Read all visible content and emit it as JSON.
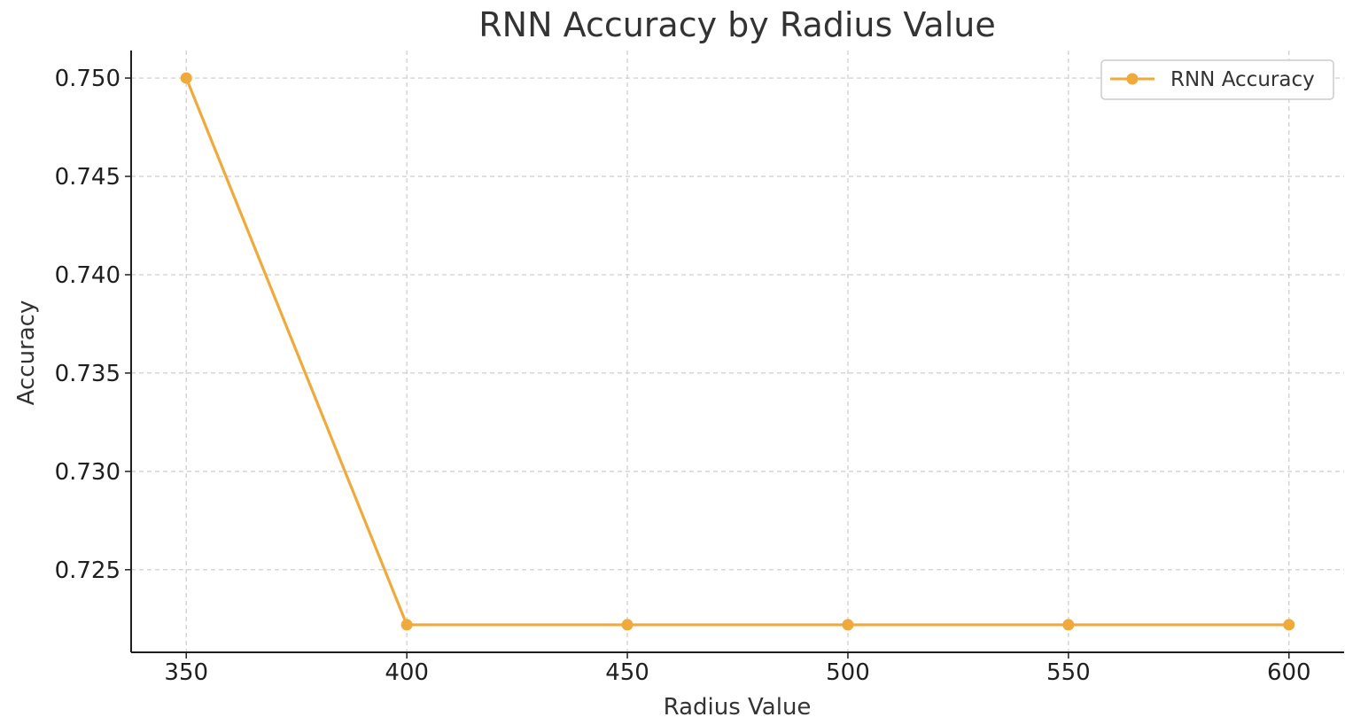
{
  "chart_data": {
    "type": "line",
    "title": "RNN Accuracy by Radius Value",
    "xlabel": "Radius Value",
    "ylabel": "Accuracy",
    "x": [
      350,
      400,
      450,
      500,
      550,
      600
    ],
    "xticks": [
      "350",
      "400",
      "450",
      "500",
      "550",
      "600"
    ],
    "yticks": [
      "0.725",
      "0.730",
      "0.735",
      "0.740",
      "0.745",
      "0.750"
    ],
    "ytick_values": [
      0.725,
      0.73,
      0.735,
      0.74,
      0.745,
      0.75
    ],
    "xlim": [
      337.5,
      612.5
    ],
    "ylim": [
      0.7208,
      0.7514
    ],
    "grid": true,
    "legend_position": "top-right",
    "series": [
      {
        "name": "RNN Accuracy",
        "color": "#f0a93b",
        "marker": "circle",
        "values": [
          0.75,
          0.7222,
          0.7222,
          0.7222,
          0.7222,
          0.7222
        ]
      }
    ]
  }
}
